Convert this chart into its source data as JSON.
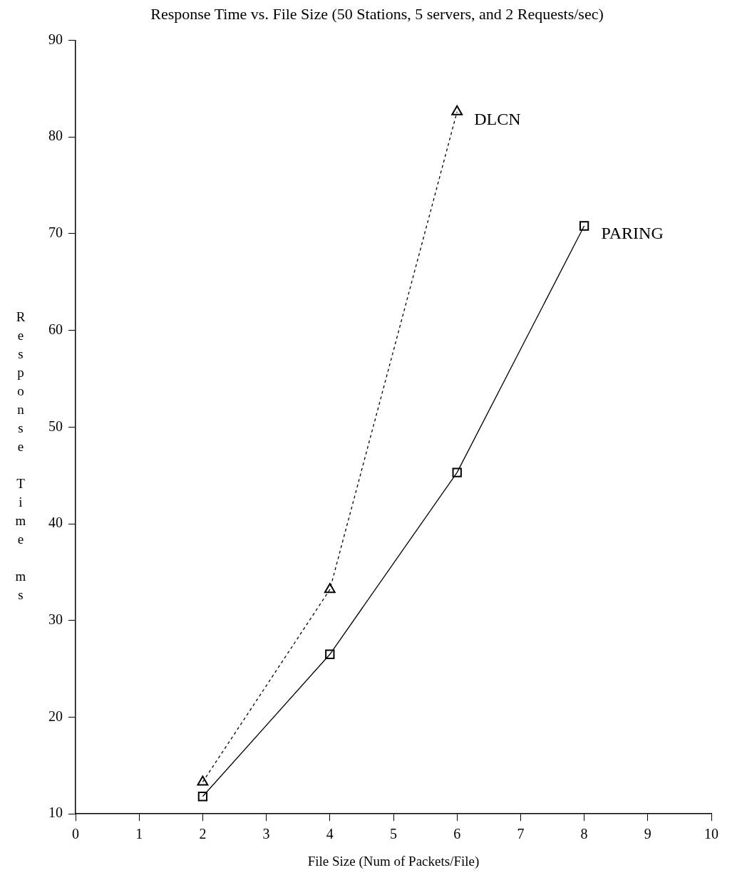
{
  "chart_data": {
    "type": "line",
    "title": "Response Time vs. File Size (50 Stations, 5 servers, and 2 Requests/sec)",
    "xlabel": "File Size (Num of Packets/File)",
    "ylabel": "Response Time ms",
    "series": [
      {
        "name": "DLCN",
        "color": "#000000",
        "x": [
          2,
          4,
          6
        ],
        "values": [
          13.3,
          33.2,
          82.6
        ],
        "marker": "triangle",
        "line_style": "dashed"
      },
      {
        "name": "PARING",
        "color": "#000000",
        "x": [
          2,
          4,
          6,
          8
        ],
        "values": [
          11.8,
          26.5,
          45.3,
          70.8
        ],
        "marker": "square",
        "line_style": "solid"
      }
    ],
    "xlim": [
      0,
      10
    ],
    "xticks": [
      0,
      1,
      2,
      3,
      4,
      5,
      6,
      7,
      8,
      9,
      10
    ],
    "ylim": [
      10,
      90
    ],
    "yticks": [
      10,
      20,
      30,
      40,
      50,
      60,
      70,
      80,
      90
    ],
    "grid": false,
    "legend": false
  }
}
